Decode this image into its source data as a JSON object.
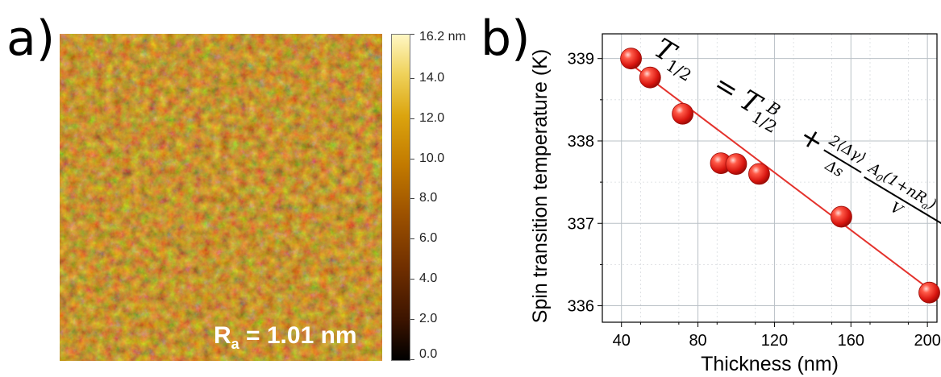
{
  "panel_a": {
    "label": "a)",
    "roughness_label": "R",
    "roughness_sub": "a",
    "roughness_value": " = 1.01 nm",
    "colorbar_labels": [
      "16.2 nm",
      "14.0",
      "12.0",
      "10.0",
      "8.0",
      "6.0",
      "4.0",
      "2.0",
      "0.0"
    ],
    "colorbar_values": [
      16.2,
      14.0,
      12.0,
      10.0,
      8.0,
      6.0,
      4.0,
      2.0,
      0.0
    ],
    "colorbar_range": [
      0,
      16.2
    ]
  },
  "panel_b": {
    "label": "b)",
    "equation": {
      "lhs": "T",
      "lhs_sub": "1/2",
      "eq": "=",
      "rhs_T": "T",
      "rhs_sub": "1/2",
      "rhs_sup": "B",
      "plus": "+",
      "frac1_num": "2⟨Δγ⟩",
      "frac1_den": "Δs",
      "frac2_num": "A",
      "frac2_num_sub": "0",
      "frac2_num_rest": "(1+nR",
      "frac2_num_rest_sub": "a",
      "frac2_num_close": ")",
      "frac2_den": "V"
    }
  },
  "colors": {
    "marker": "#e8231d",
    "fit_line": "#e4322c",
    "grid": "#b9c0c6"
  },
  "chart_data": {
    "type": "scatter",
    "title": "",
    "xlabel": "Thickness (nm)",
    "ylabel": "Spin transition temperature (K)",
    "xlim": [
      30,
      205
    ],
    "ylim": [
      335.8,
      339.3
    ],
    "xticks": [
      40,
      80,
      120,
      160,
      200
    ],
    "xtick_labels": [
      "40",
      "80",
      "120",
      "160",
      "200"
    ],
    "yticks": [
      336,
      337,
      338,
      339
    ],
    "ytick_labels": [
      "336",
      "337",
      "338",
      "339"
    ],
    "grid": true,
    "series": [
      {
        "x": [
          45,
          55,
          72,
          92,
          100,
          112,
          155,
          201
        ],
        "y": [
          339.0,
          338.77,
          338.33,
          337.73,
          337.72,
          337.6,
          337.08,
          336.16
        ]
      }
    ],
    "fit": {
      "x": [
        45,
        201
      ],
      "y": [
        338.93,
        336.2
      ]
    }
  }
}
